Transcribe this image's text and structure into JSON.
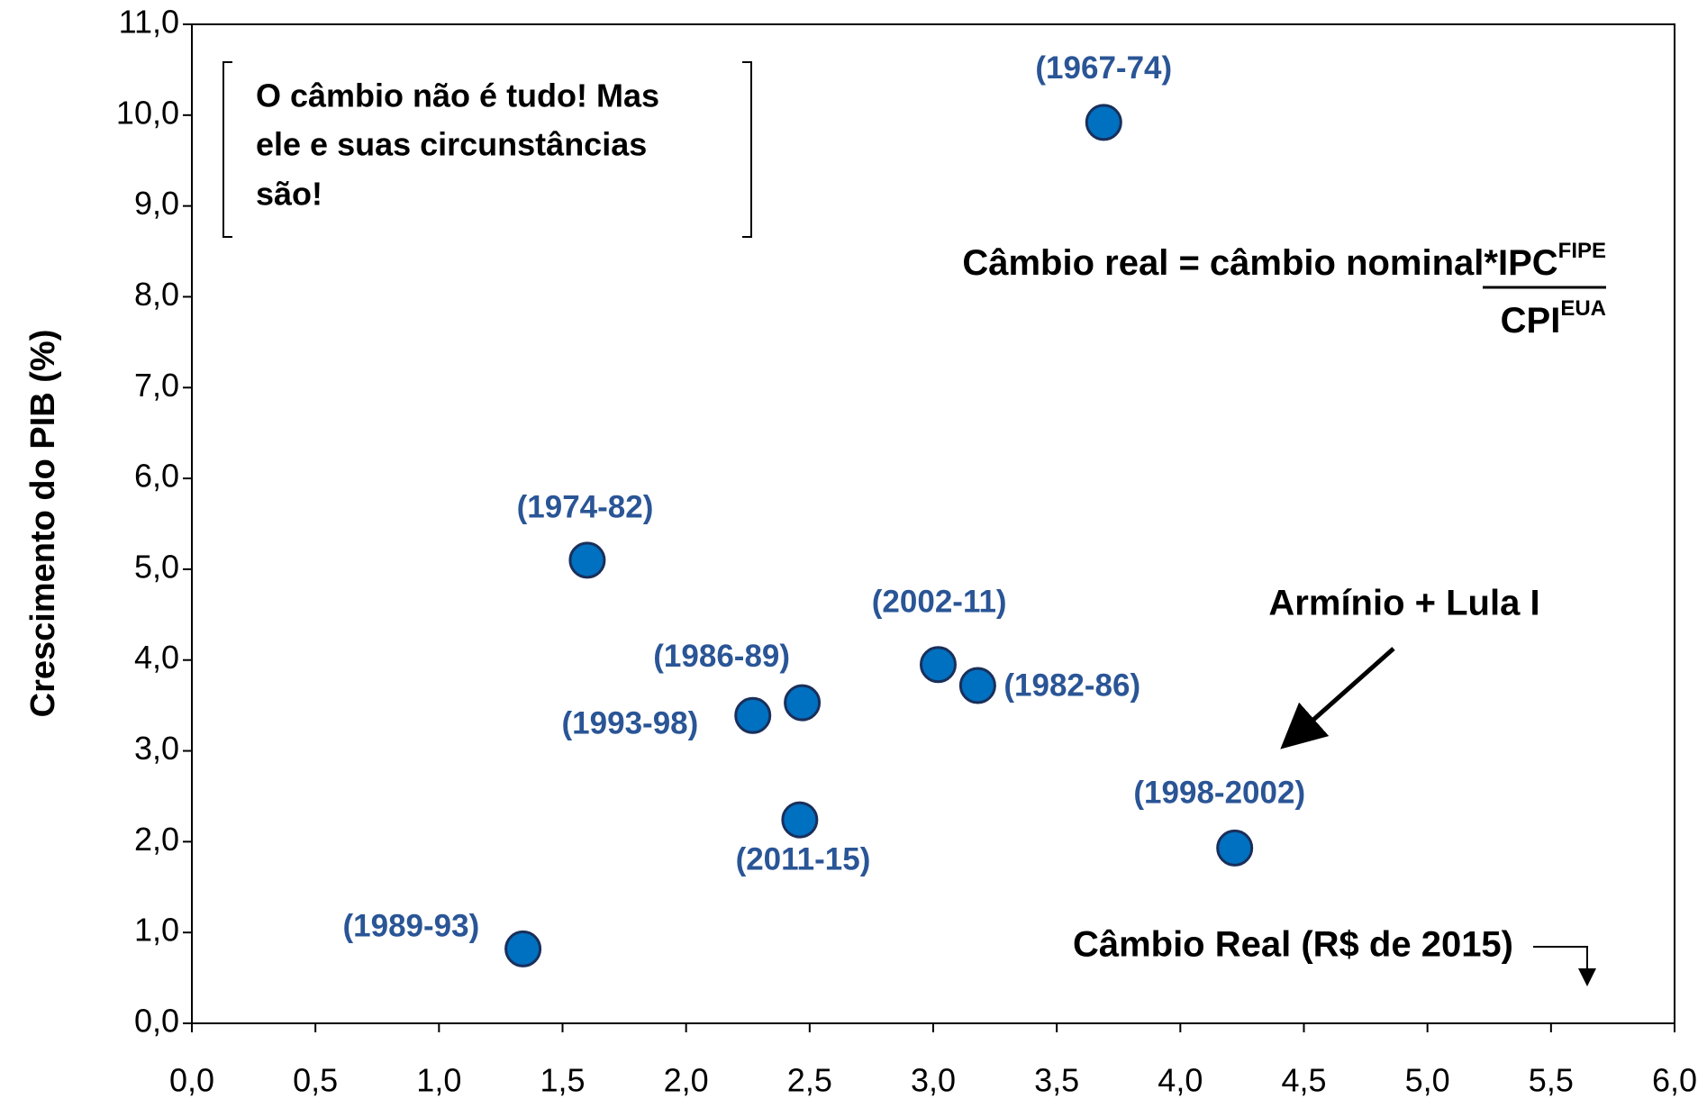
{
  "chart_data": {
    "type": "scatter",
    "y_label": "Crescimento do PIB (%)",
    "xlim": [
      0,
      6
    ],
    "ylim": [
      0,
      11
    ],
    "xticks": [
      {
        "value": 0,
        "label": "0,0"
      },
      {
        "value": 0.5,
        "label": "0,5"
      },
      {
        "value": 1,
        "label": "1,0"
      },
      {
        "value": 1.5,
        "label": "1,5"
      },
      {
        "value": 2,
        "label": "2,0"
      },
      {
        "value": 2.5,
        "label": "2,5"
      },
      {
        "value": 3,
        "label": "3,0"
      },
      {
        "value": 3.5,
        "label": "3,5"
      },
      {
        "value": 4,
        "label": "4,0"
      },
      {
        "value": 4.5,
        "label": "4,5"
      },
      {
        "value": 5,
        "label": "5,0"
      },
      {
        "value": 5.5,
        "label": "5,5"
      },
      {
        "value": 6,
        "label": "6,0"
      }
    ],
    "yticks": [
      {
        "value": 0,
        "label": "0,0"
      },
      {
        "value": 1,
        "label": "1,0"
      },
      {
        "value": 2,
        "label": "2,0"
      },
      {
        "value": 3,
        "label": "3,0"
      },
      {
        "value": 4,
        "label": "4,0"
      },
      {
        "value": 5,
        "label": "5,0"
      },
      {
        "value": 6,
        "label": "6,0"
      },
      {
        "value": 7,
        "label": "7,0"
      },
      {
        "value": 8,
        "label": "8,0"
      },
      {
        "value": 9,
        "label": "9,0"
      },
      {
        "value": 10,
        "label": "10,0"
      },
      {
        "value": 11,
        "label": "11,0"
      }
    ],
    "series": [
      {
        "color": "#0070c0",
        "labels": [
          "(1967-74)",
          "(1974-82)",
          "(2002-11)",
          "(1982-86)",
          "(1986-89)",
          "(1993-98)",
          "(2011-15)",
          "(1998-2002)",
          "(1989-93)"
        ],
        "x": [
          3.69,
          1.6,
          3.02,
          3.18,
          2.47,
          2.27,
          2.46,
          4.22,
          1.34
        ],
        "values": [
          9.92,
          5.1,
          3.95,
          3.72,
          3.53,
          3.39,
          2.24,
          1.93,
          0.82
        ]
      }
    ],
    "annotations": {
      "box": [
        "O câmbio não é tudo! Mas",
        "ele e suas circunstâncias",
        "são!"
      ],
      "formula": {
        "lhs": "Câmbio real = câmbio nominal*",
        "num": "IPC",
        "num_sup": "FIPE",
        "den": "CPI",
        "den_sup": "EUA"
      },
      "arrow_note": "Armínio + Lula I",
      "x_note": "Câmbio Real (R$ de 2015)"
    }
  }
}
